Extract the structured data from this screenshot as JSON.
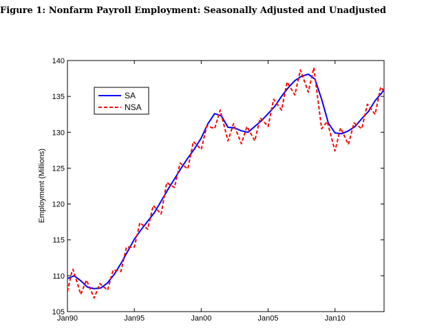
{
  "figure": {
    "caption": "Figure 1: Nonfarm Payroll Employment: Seasonally Adjusted and Unadjusted"
  },
  "colors": {
    "sa": "#0000ff",
    "nsa": "#ff0000",
    "axis": "#000000"
  },
  "chart_data": {
    "type": "line",
    "title": "Figure 1: Nonfarm Payroll Employment: Seasonally Adjusted and Unadjusted",
    "xlabel": "",
    "ylabel": "Employment (Millions)",
    "xlim": [
      "1990-01",
      "2013-09"
    ],
    "ylim": [
      105,
      140
    ],
    "xticks": [
      "Jan90",
      "Jan95",
      "Jan00",
      "Jan05",
      "Jan10"
    ],
    "yticks": [
      "105",
      "110",
      "115",
      "120",
      "125",
      "130",
      "135",
      "140"
    ],
    "grid": false,
    "legend": {
      "position": "upper-left",
      "entries": [
        "SA",
        "NSA"
      ]
    },
    "series": [
      {
        "name": "SA",
        "style": "solid",
        "color": "#0000ff",
        "x": [
          "1990-01",
          "1990-07",
          "1991-01",
          "1991-07",
          "1992-01",
          "1992-07",
          "1993-01",
          "1993-07",
          "1994-01",
          "1994-07",
          "1995-01",
          "1995-07",
          "1996-01",
          "1996-07",
          "1997-01",
          "1997-07",
          "1998-01",
          "1998-07",
          "1999-01",
          "1999-07",
          "2000-01",
          "2000-07",
          "2001-01",
          "2001-07",
          "2002-01",
          "2002-07",
          "2003-01",
          "2003-07",
          "2004-01",
          "2004-07",
          "2005-01",
          "2005-07",
          "2006-01",
          "2006-07",
          "2007-01",
          "2007-07",
          "2008-01",
          "2008-07",
          "2009-01",
          "2009-07",
          "2010-01",
          "2010-07",
          "2011-01",
          "2011-07",
          "2012-01",
          "2012-07",
          "2013-01",
          "2013-07",
          "2013-09"
        ],
        "values": [
          109.6,
          110.0,
          109.3,
          108.4,
          108.2,
          108.3,
          109.0,
          110.2,
          111.7,
          113.4,
          115.1,
          116.4,
          117.6,
          118.8,
          120.4,
          122.0,
          123.5,
          125.0,
          126.4,
          127.7,
          129.2,
          131.2,
          132.6,
          132.3,
          130.7,
          130.6,
          130.2,
          130.0,
          130.8,
          131.6,
          132.6,
          133.6,
          135.0,
          136.2,
          137.2,
          137.8,
          138.1,
          137.4,
          134.6,
          131.3,
          129.9,
          129.8,
          130.2,
          130.8,
          131.9,
          132.9,
          134.4,
          135.5,
          136.0
        ]
      },
      {
        "name": "NSA",
        "style": "dashed",
        "color": "#ff0000",
        "x": [
          "1990-01",
          "1990-05",
          "1990-06",
          "1991-01",
          "1991-06",
          "1992-01",
          "1992-06",
          "1993-01",
          "1993-06",
          "1994-01",
          "1994-06",
          "1995-01",
          "1995-06",
          "1996-01",
          "1996-06",
          "1997-01",
          "1997-06",
          "1998-01",
          "1998-06",
          "1999-01",
          "1999-06",
          "2000-01",
          "2000-06",
          "2001-01",
          "2001-06",
          "2002-01",
          "2002-06",
          "2003-01",
          "2003-06",
          "2004-01",
          "2004-06",
          "2005-01",
          "2005-06",
          "2006-01",
          "2006-06",
          "2007-01",
          "2007-06",
          "2008-01",
          "2008-06",
          "2009-01",
          "2009-06",
          "2010-01",
          "2010-06",
          "2011-01",
          "2011-06",
          "2012-01",
          "2012-06",
          "2013-01",
          "2013-06",
          "2013-09"
        ],
        "values": [
          107.8,
          110.6,
          110.9,
          107.4,
          109.4,
          106.9,
          108.9,
          108.0,
          110.8,
          110.6,
          114.0,
          114.0,
          117.4,
          116.5,
          119.8,
          118.6,
          123.0,
          122.3,
          125.7,
          124.9,
          128.7,
          127.6,
          130.9,
          130.5,
          133.1,
          128.8,
          131.2,
          128.4,
          130.8,
          128.8,
          132.0,
          130.8,
          134.6,
          133.1,
          137.0,
          135.2,
          138.7,
          135.6,
          139.0,
          130.5,
          131.5,
          127.4,
          130.6,
          128.3,
          131.3,
          130.5,
          133.9,
          132.5,
          136.3,
          135.8
        ]
      }
    ]
  }
}
